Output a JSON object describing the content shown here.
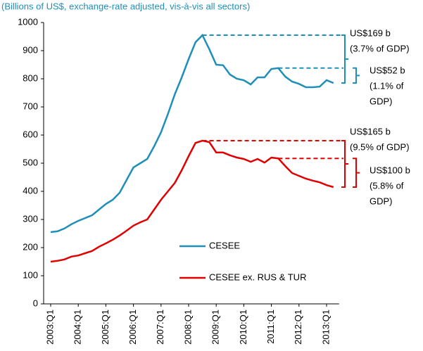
{
  "chart_data": {
    "type": "line",
    "subtitle": "(Billions of US$, exchange-rate adjusted, vis-à-vis all sectors)",
    "categories": [
      "2003:Q1",
      null,
      null,
      null,
      "2004:Q1",
      null,
      null,
      null,
      "2005:Q1",
      null,
      null,
      null,
      "2006:Q1",
      null,
      null,
      null,
      "2007:Q1",
      null,
      null,
      null,
      "2008:Q1",
      null,
      null,
      null,
      "2009:Q1",
      null,
      null,
      null,
      "2010:Q1",
      null,
      null,
      null,
      "2011:Q1",
      null,
      null,
      null,
      "2012:Q1",
      null,
      null,
      null,
      "2013:Q1",
      null
    ],
    "series": [
      {
        "name": "CESEE",
        "color": "#1f8fb8",
        "values": [
          255,
          258,
          268,
          283,
          295,
          305,
          315,
          335,
          355,
          370,
          395,
          440,
          485,
          500,
          515,
          560,
          610,
          675,
          745,
          805,
          870,
          930,
          955,
          905,
          850,
          848,
          815,
          800,
          795,
          780,
          805,
          805,
          835,
          838,
          808,
          790,
          782,
          770,
          770,
          772,
          795,
          785
        ]
      },
      {
        "name": "CESEE ex. RUS & TUR",
        "color": "#e00000",
        "values": [
          150,
          153,
          158,
          168,
          172,
          180,
          188,
          203,
          215,
          228,
          243,
          260,
          278,
          290,
          300,
          335,
          370,
          400,
          430,
          475,
          525,
          572,
          580,
          575,
          538,
          538,
          528,
          520,
          515,
          505,
          515,
          502,
          520,
          517,
          490,
          465,
          455,
          445,
          438,
          432,
          422,
          415
        ]
      }
    ],
    "ylim": [
      0,
      1000
    ],
    "yticks": [
      0,
      100,
      200,
      300,
      400,
      500,
      600,
      700,
      800,
      900,
      1000
    ],
    "annotations": [
      {
        "lines": [
          "US$169 b",
          "(3.7% of GDP)"
        ]
      },
      {
        "lines": [
          "US$52 b",
          "(1.1% of",
          "GDP)"
        ]
      },
      {
        "lines": [
          "US$165 b",
          "(9.5% of GDP)"
        ]
      },
      {
        "lines": [
          "US$100 b",
          "(5.8% of",
          "GDP)"
        ]
      }
    ]
  }
}
